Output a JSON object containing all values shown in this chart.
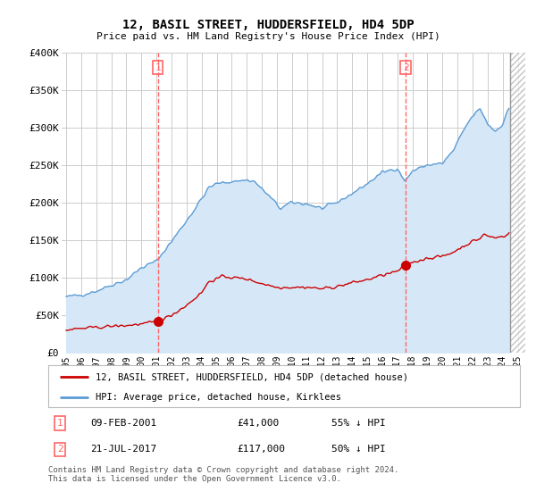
{
  "title": "12, BASIL STREET, HUDDERSFIELD, HD4 5DP",
  "subtitle": "Price paid vs. HM Land Registry's House Price Index (HPI)",
  "ylim": [
    0,
    400000
  ],
  "yticks": [
    0,
    50000,
    100000,
    150000,
    200000,
    250000,
    300000,
    350000,
    400000
  ],
  "ytick_labels": [
    "£0",
    "£50K",
    "£100K",
    "£150K",
    "£200K",
    "£250K",
    "£300K",
    "£350K",
    "£400K"
  ],
  "hpi_color": "#5B9BD5",
  "hpi_fill_color": "#D6E8F7",
  "price_color": "#CC0000",
  "vline_color": "#FF6666",
  "background_color": "#FFFFFF",
  "grid_color": "#CCCCCC",
  "legend_entry1": "12, BASIL STREET, HUDDERSFIELD, HD4 5DP (detached house)",
  "legend_entry2": "HPI: Average price, detached house, Kirklees",
  "annotation1_label": "1",
  "annotation1_date": "09-FEB-2001",
  "annotation1_price": "£41,000",
  "annotation1_note": "55% ↓ HPI",
  "annotation2_label": "2",
  "annotation2_date": "21-JUL-2017",
  "annotation2_price": "£117,000",
  "annotation2_note": "50% ↓ HPI",
  "vline1_x": 2001.1,
  "vline2_x": 2017.55,
  "sale1_x": 2001.1,
  "sale1_y": 41000,
  "sale2_x": 2017.55,
  "sale2_y": 117000,
  "hatch_start_x": 2024.5,
  "copyright": "Contains HM Land Registry data © Crown copyright and database right 2024.\nThis data is licensed under the Open Government Licence v3.0.",
  "xlim_left": 1994.7,
  "xlim_right": 2025.5,
  "xtick_years": [
    1995,
    1996,
    1997,
    1998,
    1999,
    2000,
    2001,
    2002,
    2003,
    2004,
    2005,
    2006,
    2007,
    2008,
    2009,
    2010,
    2011,
    2012,
    2013,
    2014,
    2015,
    2016,
    2017,
    2018,
    2019,
    2020,
    2021,
    2022,
    2023,
    2024,
    2025
  ]
}
